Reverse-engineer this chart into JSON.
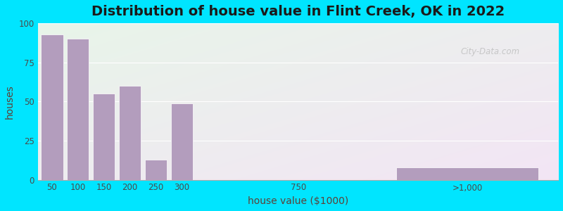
{
  "title": "Distribution of house value in Flint Creek, OK in 2022",
  "xlabel": "house value ($1000)",
  "ylabel": "houses",
  "bar_labels": [
    "50",
    "100",
    "150",
    "200",
    "250",
    "300",
    "750",
    ">1,000"
  ],
  "bar_values": [
    93,
    90,
    55,
    60,
    13,
    49,
    0,
    8
  ],
  "bar_color": "#b39dbd",
  "bar_edge_color": "#ffffff",
  "yticks": [
    0,
    25,
    50,
    75,
    100
  ],
  "ylim": [
    0,
    100
  ],
  "background_outer": "#00e5ff",
  "background_inner_top_left": "#e8f5e9",
  "background_inner_bottom_right": "#f0e6f5",
  "watermark": "City-Data.com",
  "title_fontsize": 14,
  "axis_label_fontsize": 10,
  "x_positions": [
    0,
    1,
    2,
    3,
    4,
    5,
    9.5,
    16
  ],
  "bar_widths": [
    0.85,
    0.85,
    0.85,
    0.85,
    0.85,
    0.85,
    0.85,
    5.5
  ],
  "xlim": [
    -0.55,
    19.5
  ]
}
